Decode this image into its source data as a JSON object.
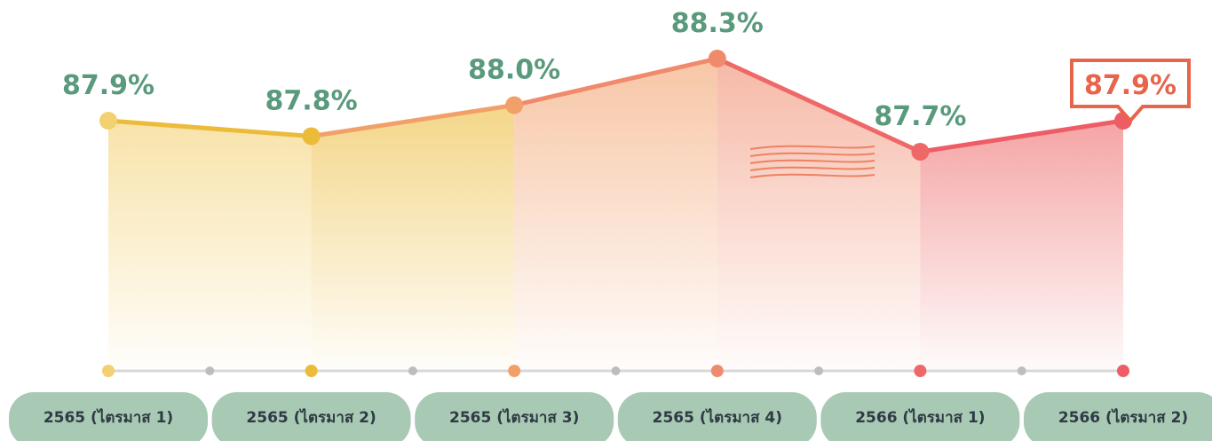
{
  "chart_data": {
    "type": "line",
    "categories": [
      "2565 (ไตรมาส 1)",
      "2565 (ไตรมาส 2)",
      "2565 (ไตรมาส 3)",
      "2565 (ไตรมาส 4)",
      "2566 (ไตรมาส 1)",
      "2566 (ไตรมาส 2)"
    ],
    "values": [
      87.9,
      87.8,
      88.0,
      88.3,
      87.7,
      87.9
    ],
    "value_labels": [
      "87.9%",
      "87.8%",
      "88.0%",
      "88.3%",
      "87.7%",
      "87.9%"
    ],
    "point_colors": [
      "#f3d070",
      "#ecbb3a",
      "#f2a06a",
      "#f08a6c",
      "#ee6868",
      "#ee5c66"
    ],
    "label_colors": [
      "#5a9a7c",
      "#5a9a7c",
      "#5a9a7c",
      "#5a9a7c",
      "#5a9a7c",
      "#e8644a"
    ],
    "category_color": "#a8c9b4",
    "ylim": [
      86.3,
      88.5
    ]
  }
}
